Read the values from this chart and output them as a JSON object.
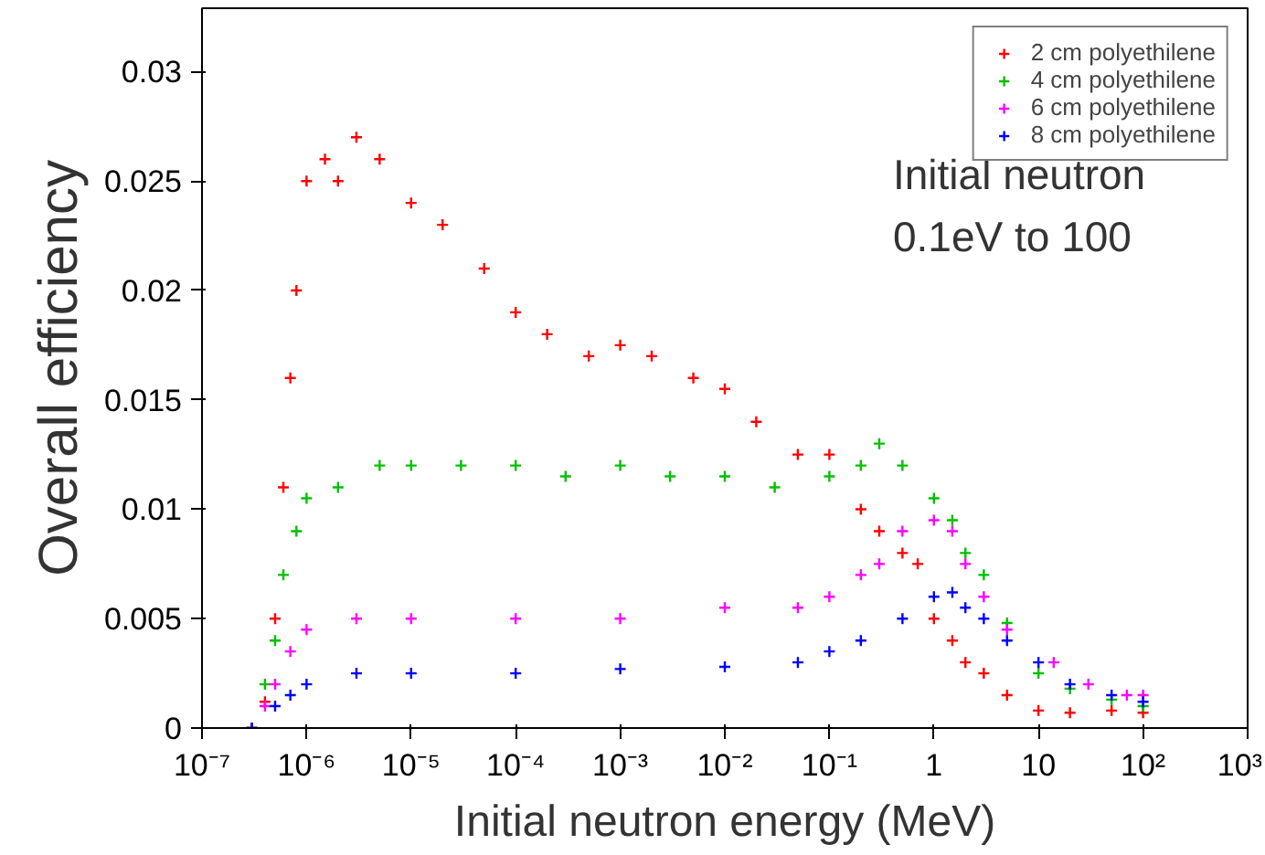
{
  "chart_data": {
    "type": "scatter",
    "xlabel": "Initial neutron energy (MeV)",
    "ylabel": "Overall efficiency",
    "log": "x",
    "xlim": [
      1e-07,
      1000
    ],
    "ylim": [
      0,
      0.0329
    ],
    "xticks": [
      {
        "value": 1e-07,
        "label": "10⁻⁷"
      },
      {
        "value": 1e-06,
        "label": "10⁻⁶"
      },
      {
        "value": 1e-05,
        "label": "10⁻⁵"
      },
      {
        "value": 0.0001,
        "label": "10⁻⁴"
      },
      {
        "value": 0.001,
        "label": "10⁻³"
      },
      {
        "value": 0.01,
        "label": "10⁻²"
      },
      {
        "value": 0.1,
        "label": "10⁻¹"
      },
      1,
      10,
      {
        "value": 100,
        "label": "10²"
      },
      {
        "value": 1000,
        "label": "10³"
      }
    ],
    "yticks": [
      0,
      0.005,
      0.01,
      0.015,
      0.02,
      0.025,
      0.03
    ],
    "grid": false,
    "legend": "top right",
    "marker": "cross",
    "annotations": [
      "Initial neutron",
      "0.1eV to 100"
    ],
    "series": [
      {
        "name": "2 cm polyethilene",
        "color": "#ff0000",
        "x": [
          3e-07,
          4e-07,
          5e-07,
          6e-07,
          7e-07,
          8e-07,
          1e-06,
          1.5e-06,
          2e-06,
          3e-06,
          5e-06,
          1e-05,
          2e-05,
          5e-05,
          0.0001,
          0.0002,
          0.0005,
          0.001,
          0.002,
          0.005,
          0.01,
          0.02,
          0.05,
          0.1,
          0.2,
          0.3,
          0.5,
          0.7,
          1,
          1.5,
          2,
          3,
          5,
          10,
          20,
          50,
          100
        ],
        "values": [
          0,
          0.0012,
          0.005,
          0.011,
          0.016,
          0.02,
          0.025,
          0.026,
          0.025,
          0.027,
          0.026,
          0.024,
          0.023,
          0.021,
          0.019,
          0.018,
          0.017,
          0.0175,
          0.017,
          0.016,
          0.0155,
          0.014,
          0.0125,
          0.0125,
          0.01,
          0.009,
          0.008,
          0.0075,
          0.005,
          0.004,
          0.003,
          0.0025,
          0.0015,
          0.0008,
          0.0007,
          0.0008,
          0.0007
        ]
      },
      {
        "name": "4 cm polyethilene",
        "color": "#00c000",
        "x": [
          3e-07,
          4e-07,
          5e-07,
          6e-07,
          8e-07,
          1e-06,
          2e-06,
          5e-06,
          1e-05,
          3e-05,
          0.0001,
          0.0003,
          0.001,
          0.003,
          0.01,
          0.03,
          0.1,
          0.2,
          0.3,
          0.5,
          1,
          1.5,
          2,
          3,
          5,
          10,
          20,
          50,
          100
        ],
        "values": [
          0,
          0.002,
          0.004,
          0.007,
          0.009,
          0.0105,
          0.011,
          0.012,
          0.012,
          0.012,
          0.012,
          0.0115,
          0.012,
          0.0115,
          0.0115,
          0.011,
          0.0115,
          0.012,
          0.013,
          0.012,
          0.0105,
          0.0095,
          0.008,
          0.007,
          0.0048,
          0.0025,
          0.0018,
          0.0013,
          0.001
        ]
      },
      {
        "name": "6 cm polyethilene",
        "color": "#ff00ff",
        "x": [
          3e-07,
          4e-07,
          5e-07,
          7e-07,
          1e-06,
          3e-06,
          1e-05,
          0.0001,
          0.001,
          0.01,
          0.05,
          0.1,
          0.2,
          0.3,
          0.5,
          1,
          1.5,
          2,
          3,
          5,
          14,
          30,
          70,
          100
        ],
        "values": [
          0,
          0.001,
          0.002,
          0.0035,
          0.0045,
          0.005,
          0.005,
          0.005,
          0.005,
          0.0055,
          0.0055,
          0.006,
          0.007,
          0.0075,
          0.009,
          0.0095,
          0.009,
          0.0075,
          0.006,
          0.0045,
          0.003,
          0.002,
          0.0015,
          0.0015
        ]
      },
      {
        "name": "8 cm polyethilene",
        "color": "#0000ff",
        "x": [
          3e-07,
          5e-07,
          7e-07,
          1e-06,
          3e-06,
          1e-05,
          0.0001,
          0.001,
          0.01,
          0.05,
          0.1,
          0.2,
          0.5,
          1,
          1.5,
          2,
          3,
          5,
          10,
          20,
          50,
          100
        ],
        "values": [
          0,
          0.001,
          0.0015,
          0.002,
          0.0025,
          0.0025,
          0.0025,
          0.0027,
          0.0028,
          0.003,
          0.0035,
          0.004,
          0.005,
          0.006,
          0.0062,
          0.0055,
          0.005,
          0.004,
          0.003,
          0.002,
          0.0015,
          0.0012
        ]
      }
    ]
  }
}
